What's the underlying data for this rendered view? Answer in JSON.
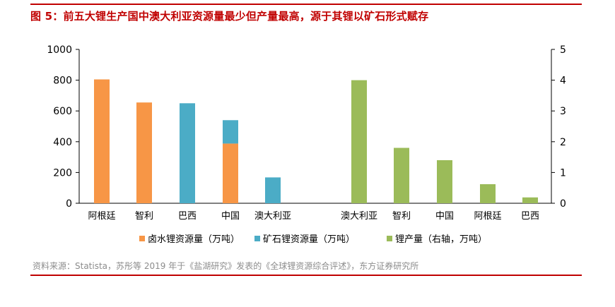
{
  "figure": {
    "title": "图 5：前五大锂生产国中澳大利亚资源量最少但产量最高，源于其锂以矿石形式赋存",
    "source": "资料来源：Statista，苏彤等 2019 年于《盐湖研究》发表的《全球锂资源综合评述》，东方证券研究所"
  },
  "colors": {
    "brine": "#f79646",
    "ore": "#4bacc6",
    "production": "#9bbb59",
    "accent": "#c00000"
  },
  "chart_data": {
    "type": "bar",
    "categories": [
      "阿根廷",
      "智利",
      "巴西",
      "中国",
      "澳大利亚",
      "澳大利亚",
      "智利",
      "中国",
      "阿根廷",
      "巴西"
    ],
    "ylim": [
      0,
      1000
    ],
    "y_ticks": [
      "0",
      "200",
      "400",
      "600",
      "800",
      "1000"
    ],
    "y2lim": [
      0,
      5
    ],
    "y2_ticks": [
      "0",
      "1",
      "2",
      "3",
      "4",
      "5"
    ],
    "grid": false,
    "legend_position": "bottom",
    "series": [
      {
        "name": "卤水锂资源量（万吨）",
        "axis": "left",
        "color": "#f79646",
        "values": [
          805,
          655,
          0,
          388,
          0,
          null,
          null,
          null,
          null,
          null
        ]
      },
      {
        "name": "矿石锂资源量（万吨）",
        "axis": "left",
        "color": "#4bacc6",
        "values": [
          0,
          0,
          650,
          152,
          168,
          null,
          null,
          null,
          null,
          null
        ]
      },
      {
        "name": "锂产量（右轴，万吨）",
        "axis": "right",
        "color": "#9bbb59",
        "values": [
          null,
          null,
          null,
          null,
          null,
          4.0,
          1.8,
          1.4,
          0.62,
          0.19
        ]
      }
    ]
  }
}
